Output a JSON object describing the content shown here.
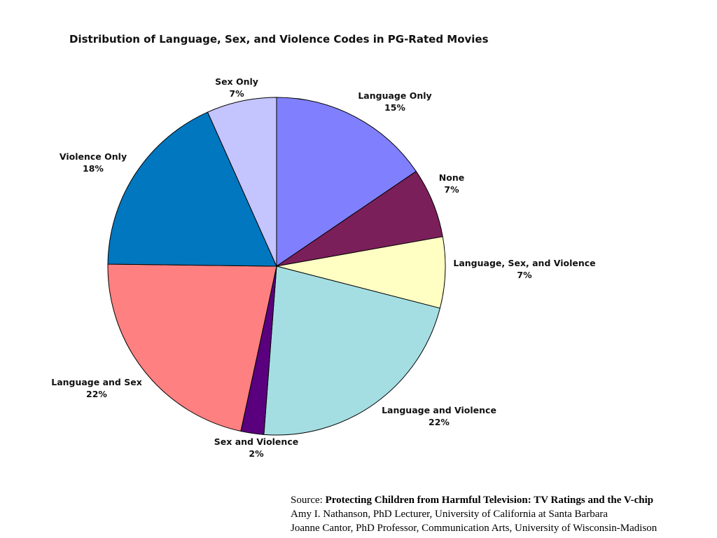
{
  "chart_data": {
    "type": "pie",
    "title": "Distribution of Language, Sex, and Violence Codes in PG-Rated Movies",
    "slices": [
      {
        "name": "Language Only",
        "label": "Language Only",
        "pct_label": "15%",
        "value": 15.5,
        "color": "#8080FF"
      },
      {
        "name": "None",
        "label": "None",
        "pct_label": "7%",
        "value": 6.7,
        "color": "#7B1F5A"
      },
      {
        "name": "Language, Sex, and Violence",
        "label": "Language, Sex, and Violence",
        "pct_label": "7%",
        "value": 6.8,
        "color": "#FFFFC4"
      },
      {
        "name": "Language and Violence",
        "label": "Language and Violence",
        "pct_label": "22%",
        "value": 22.2,
        "color": "#A4DEE3"
      },
      {
        "name": "Sex and Violence",
        "label": "Sex and Violence",
        "pct_label": "2%",
        "value": 2.2,
        "color": "#5A007E"
      },
      {
        "name": "Language and Sex",
        "label": "Language and Sex",
        "pct_label": "22%",
        "value": 21.8,
        "color": "#FF8080"
      },
      {
        "name": "Violence Only",
        "label": "Violence Only",
        "pct_label": "18%",
        "value": 18.1,
        "color": "#0077BF"
      },
      {
        "name": "Sex Only",
        "label": "Sex Only",
        "pct_label": "7%",
        "value": 6.7,
        "color": "#C4C4FF"
      }
    ]
  },
  "source": {
    "prefix": "Source:",
    "title": "Protecting Children from Harmful Television: TV Ratings and the V-chip",
    "line2": "Amy I. Nathanson, PhD Lecturer, University of California at Santa Barbara",
    "line3": "Joanne Cantor, PhD Professor, Communication Arts, University of Wisconsin-Madison"
  }
}
